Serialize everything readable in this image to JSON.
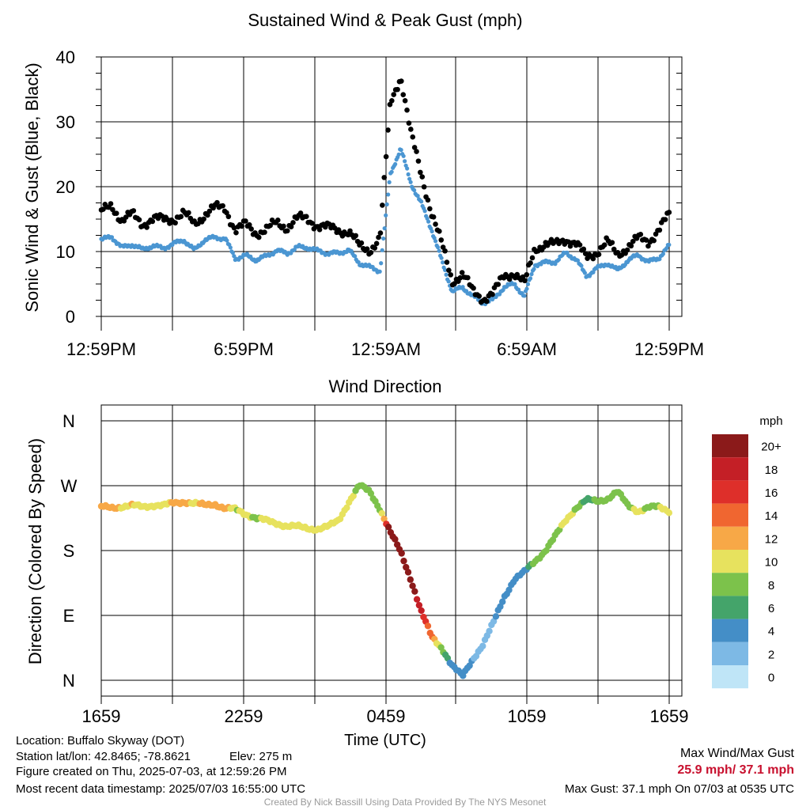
{
  "chart_data": [
    {
      "type": "scatter",
      "title": "Sustained Wind & Peak Gust (mph)",
      "ylabel": "Sonic Wind & Gust (Blue, Black)",
      "xlabel": "",
      "x_tick_labels": [
        "12:59PM",
        "6:59PM",
        "12:59AM",
        "6:59AM",
        "12:59PM"
      ],
      "ylim": [
        0,
        40
      ],
      "y_ticks": [
        0,
        10,
        20,
        30,
        40
      ],
      "grid": true,
      "series": [],
      "sustained_hourly": [
        11.8,
        12.3,
        10.6,
        11.1,
        10.3,
        10.9,
        10.5,
        11.2,
        11.8,
        10.2,
        11.8,
        12.2,
        12.0,
        8.9,
        9.4,
        8.7,
        9.3,
        10.2,
        9.7,
        10.7,
        10.6,
        10.1,
        9.7,
        9.8,
        10.2,
        8.2,
        7.6,
        7.0,
        21.9,
        25.9,
        20.5,
        17.4,
        13.4,
        8.5,
        3.8,
        4.5,
        3.1,
        2.1,
        2.6,
        4.5,
        5.0,
        3.1,
        8.0,
        8.3,
        8.4,
        9.8,
        8.8,
        6.2,
        7.4,
        8.2,
        7.1,
        8.6,
        9.5,
        8.4,
        9.0,
        10.9
      ],
      "gust_hourly": [
        16.0,
        17.2,
        14.8,
        15.7,
        14.3,
        15.0,
        14.9,
        15.1,
        15.8,
        14.3,
        15.7,
        16.7,
        16.8,
        13.3,
        14.1,
        12.9,
        13.4,
        14.4,
        13.8,
        15.1,
        15.0,
        14.0,
        13.6,
        13.4,
        13.0,
        10.8,
        10.3,
        12.0,
        33.0,
        37.1,
        28.0,
        22.0,
        16.0,
        11.0,
        5.5,
        6.5,
        3.8,
        2.8,
        3.6,
        6.2,
        6.8,
        5.0,
        10.5,
        11.2,
        11.0,
        12.0,
        11.2,
        9.0,
        10.0,
        11.5,
        9.5,
        10.8,
        12.0,
        11.5,
        13.5,
        15.5
      ]
    },
    {
      "type": "scatter",
      "title": "Wind Direction",
      "ylabel": "Direction (Colored By Speed)",
      "xlabel": "Time (UTC)",
      "x_tick_labels": [
        "1659",
        "2259",
        "0459",
        "1059",
        "1659"
      ],
      "y_ticks": [
        "N",
        "E",
        "S",
        "W",
        "N"
      ],
      "ylim_degrees": [
        0,
        360
      ],
      "grid": true,
      "direction_hourly": [
        240,
        240,
        241,
        242,
        241,
        243,
        242,
        246,
        248,
        245,
        243,
        245,
        238,
        237,
        231,
        225,
        221,
        218,
        214,
        213,
        211,
        210,
        213,
        222,
        248,
        270,
        262,
        238,
        205,
        178,
        140,
        95,
        60,
        45,
        20,
        5,
        30,
        50,
        80,
        115,
        140,
        150,
        165,
        180,
        200,
        222,
        240,
        250,
        248,
        252,
        262,
        242,
        235,
        240,
        240,
        235
      ],
      "colorbar": {
        "title": "mph",
        "labels": [
          "20+",
          "18",
          "16",
          "14",
          "12",
          "10",
          "8",
          "6",
          "4",
          "2",
          "0"
        ],
        "colors": [
          "#8b1a1a",
          "#c41f26",
          "#de2f2a",
          "#f06630",
          "#f7a847",
          "#e7e25e",
          "#7cc24b",
          "#44a46a",
          "#448ec7",
          "#7db9e5",
          "#bfe5f7"
        ]
      }
    }
  ],
  "footer": {
    "location": "Location: Buffalo Skyway (DOT)",
    "station": "Station lat/lon: 42.8465; -78.8621",
    "elev": "Elev: 275 m",
    "created": "Figure created on Thu, 2025-07-03, at 12:59:26 PM",
    "recent": "Most recent data timestamp: 2025/07/03 16:55:00 UTC",
    "max_title": "Max Wind/Max Gust",
    "max_values": "25.9 mph/ 37.1 mph",
    "max_gust": "Max Gust: 37.1 mph On 07/03 at 0535 UTC",
    "credit": "Created By Nick Bassill Using Data Provided By The NYS Mesonet"
  },
  "colors": {
    "sustained": "#4b96d2",
    "gust": "#000000",
    "max_values": "#c8102e"
  }
}
